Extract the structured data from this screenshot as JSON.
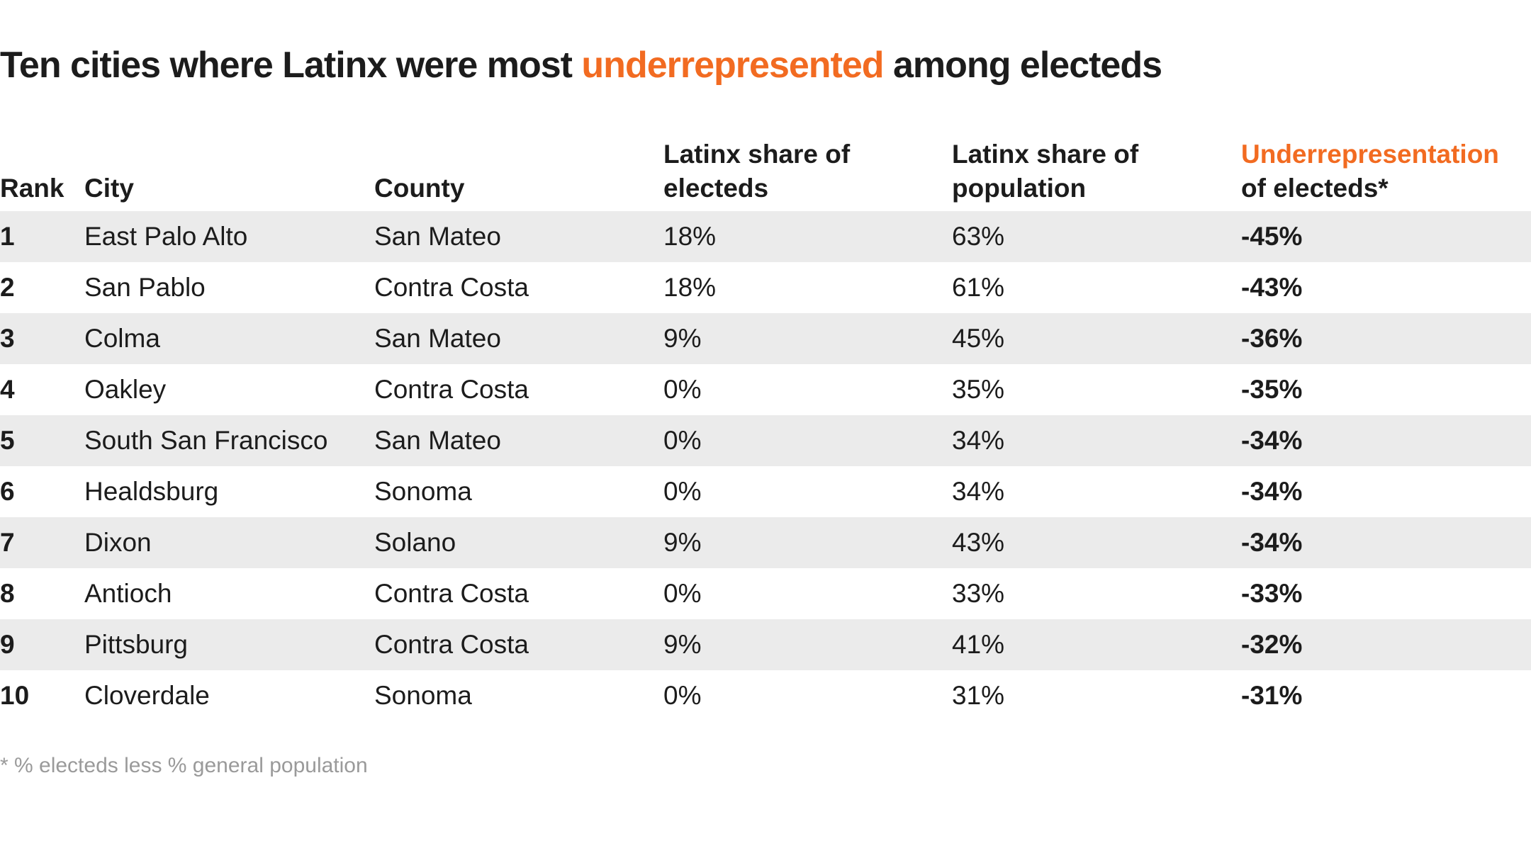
{
  "title": {
    "before": "Ten cities where Latinx were most ",
    "highlight": "underrepresented",
    "after": " among electeds"
  },
  "table": {
    "columns": [
      "Rank",
      "City",
      "County",
      "Latinx share of electeds",
      "Latinx share of population",
      {
        "highlight": "Underrepresentation",
        "rest": "of electeds*"
      }
    ],
    "rows": [
      [
        "1",
        "East Palo Alto",
        "San Mateo",
        "18%",
        "63%",
        "-45%"
      ],
      [
        "2",
        "San Pablo",
        "Contra Costa",
        "18%",
        "61%",
        "-43%"
      ],
      [
        "3",
        "Colma",
        "San Mateo",
        "9%",
        "45%",
        "-36%"
      ],
      [
        "4",
        "Oakley",
        "Contra Costa",
        "0%",
        "35%",
        "-35%"
      ],
      [
        "5",
        "South San Francisco",
        "San Mateo",
        "0%",
        "34%",
        "-34%"
      ],
      [
        "6",
        "Healdsburg",
        "Sonoma",
        "0%",
        "34%",
        "-34%"
      ],
      [
        "7",
        "Dixon",
        "Solano",
        "9%",
        "43%",
        "-34%"
      ],
      [
        "8",
        "Antioch",
        "Contra Costa",
        "0%",
        "33%",
        "-33%"
      ],
      [
        "9",
        "Pittsburg",
        "Contra Costa",
        "9%",
        "41%",
        "-32%"
      ],
      [
        "10",
        "Cloverdale",
        "Sonoma",
        "0%",
        "31%",
        "-31%"
      ]
    ]
  },
  "footnote": "* % electeds less % general population"
}
